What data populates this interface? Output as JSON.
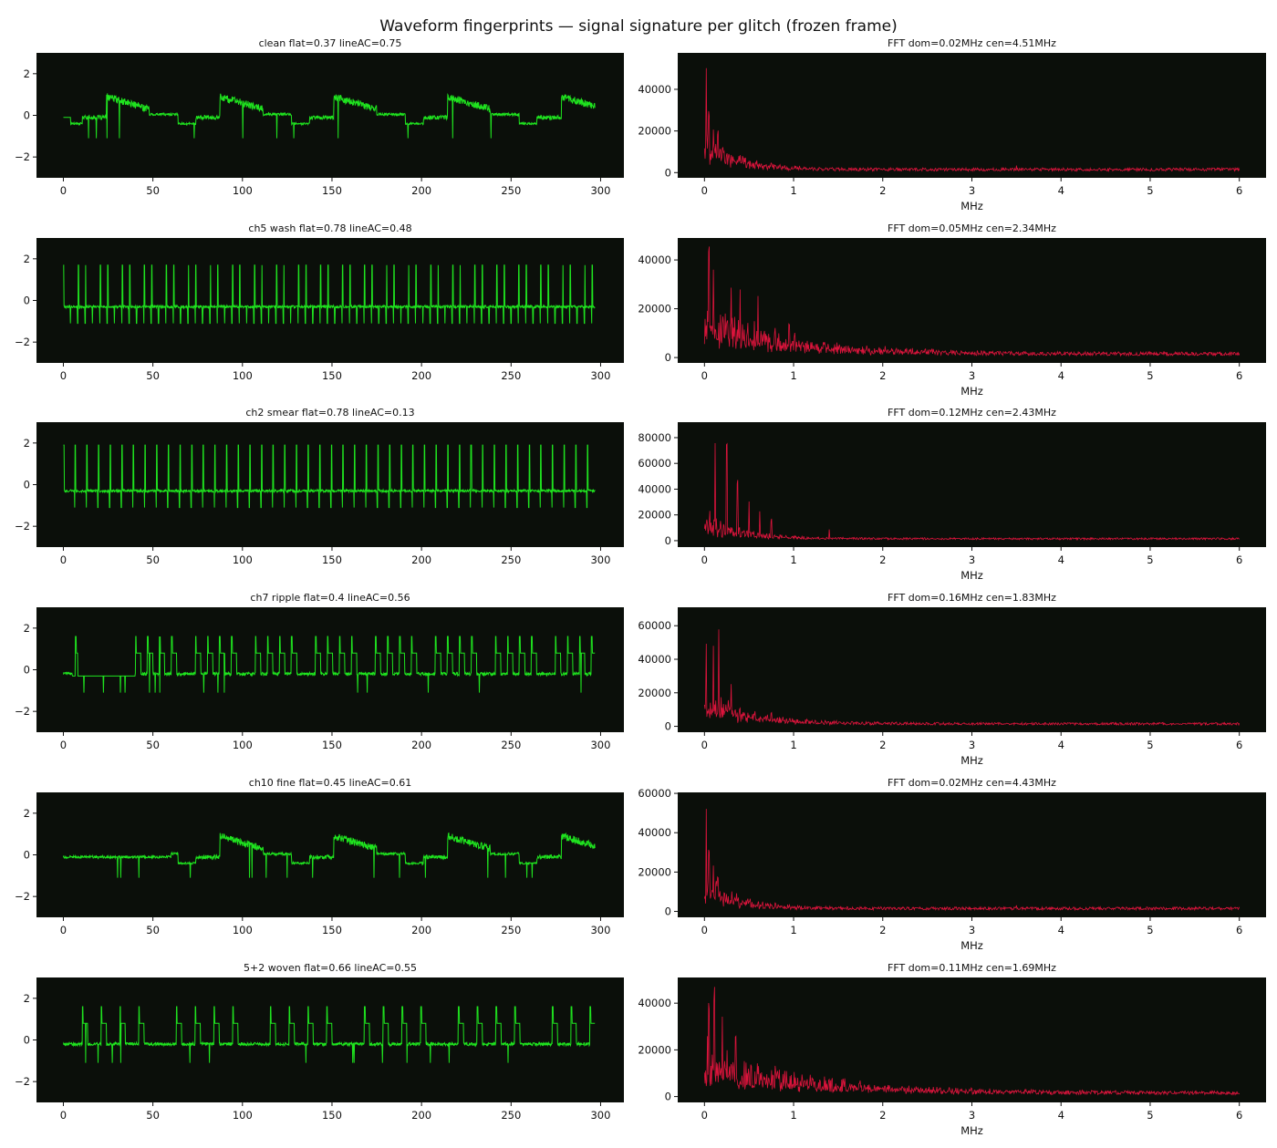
{
  "suptitle": "Waveform fingerprints — signal signature per glitch (frozen frame)",
  "colors": {
    "background": "#0b0f0a",
    "waveform": "#1fe31f",
    "spectrum": "#dc143c"
  },
  "chart_data": [
    {
      "type": "line",
      "panel": "waveform",
      "title": "clean  flat=0.37 lineAC=0.75",
      "variant": "clean",
      "xlim": [
        -15,
        313
      ],
      "ylim": [
        -3,
        3
      ],
      "xticks": [
        0,
        50,
        100,
        150,
        200,
        250,
        300
      ],
      "yticks": [
        -2,
        0,
        2
      ],
      "xlabel": ""
    },
    {
      "type": "line",
      "panel": "spectrum",
      "title": "FFT  dom=0.02MHz cen=4.51MHz",
      "xlabel": "MHz",
      "xlim": [
        -0.3,
        6.3
      ],
      "ylim": [
        -2500,
        57500
      ],
      "xticks": [
        0,
        1,
        2,
        3,
        4,
        5,
        6
      ],
      "yticks": [
        0,
        20000,
        40000
      ],
      "peaks": [
        [
          0.02,
          55000
        ],
        [
          0.05,
          30000
        ],
        [
          0.1,
          22000
        ],
        [
          0.15,
          21000
        ],
        [
          0.25,
          9000
        ],
        [
          3.5,
          4000
        ]
      ],
      "decay": 0.35
    },
    {
      "type": "line",
      "panel": "waveform",
      "title": "ch5 wash  flat=0.78 lineAC=0.48",
      "variant": "wash",
      "xlim": [
        -15,
        313
      ],
      "ylim": [
        -3,
        3
      ],
      "xticks": [
        0,
        50,
        100,
        150,
        200,
        250,
        300
      ],
      "yticks": [
        -2,
        0,
        2
      ],
      "xlabel": ""
    },
    {
      "type": "line",
      "panel": "spectrum",
      "title": "FFT  dom=0.05MHz cen=2.34MHz",
      "xlabel": "MHz",
      "xlim": [
        -0.3,
        6.3
      ],
      "ylim": [
        -2200,
        49000
      ],
      "xticks": [
        0,
        1,
        2,
        3,
        4,
        5,
        6
      ],
      "yticks": [
        0,
        20000,
        40000
      ],
      "peaks": [
        [
          0.05,
          46000
        ],
        [
          0.1,
          38000
        ],
        [
          0.3,
          33000
        ],
        [
          0.4,
          28000
        ],
        [
          0.6,
          26000
        ],
        [
          0.95,
          14000
        ]
      ],
      "decay": 0.9
    },
    {
      "type": "line",
      "panel": "waveform",
      "title": "ch2 smear  flat=0.78 lineAC=0.13",
      "variant": "smear",
      "xlim": [
        -15,
        313
      ],
      "ylim": [
        -3,
        3
      ],
      "xticks": [
        0,
        50,
        100,
        150,
        200,
        250,
        300
      ],
      "yticks": [
        -2,
        0,
        2
      ],
      "xlabel": ""
    },
    {
      "type": "line",
      "panel": "spectrum",
      "title": "FFT  dom=0.12MHz cen=2.43MHz",
      "xlabel": "MHz",
      "xlim": [
        -0.3,
        6.3
      ],
      "ylim": [
        -5000,
        92000
      ],
      "xticks": [
        0,
        1,
        2,
        3,
        4,
        5,
        6
      ],
      "yticks": [
        0,
        20000,
        40000,
        60000,
        80000
      ],
      "peaks": [
        [
          0.12,
          87000
        ],
        [
          0.25,
          78000
        ],
        [
          0.37,
          50000
        ],
        [
          0.5,
          33000
        ],
        [
          0.62,
          25000
        ],
        [
          0.75,
          17000
        ],
        [
          1.4,
          10000
        ]
      ],
      "decay": 0.4
    },
    {
      "type": "line",
      "panel": "waveform",
      "title": "ch7 ripple  flat=0.4 lineAC=0.56",
      "variant": "ripple",
      "xlim": [
        -15,
        313
      ],
      "ylim": [
        -3,
        3
      ],
      "xticks": [
        0,
        50,
        100,
        150,
        200,
        250,
        300
      ],
      "yticks": [
        -2,
        0,
        2
      ],
      "xlabel": ""
    },
    {
      "type": "line",
      "panel": "spectrum",
      "title": "FFT  dom=0.16MHz cen=1.83MHz",
      "xlabel": "MHz",
      "xlim": [
        -0.3,
        6.3
      ],
      "ylim": [
        -3500,
        71000
      ],
      "xticks": [
        0,
        1,
        2,
        3,
        4,
        5,
        6
      ],
      "yticks": [
        0,
        20000,
        40000,
        60000
      ],
      "peaks": [
        [
          0.02,
          57000
        ],
        [
          0.16,
          67000
        ],
        [
          0.1,
          50000
        ],
        [
          0.3,
          28000
        ],
        [
          0.75,
          9000
        ]
      ],
      "decay": 0.5
    },
    {
      "type": "line",
      "panel": "waveform",
      "title": "ch10 fine  flat=0.45 lineAC=0.61",
      "variant": "fine",
      "xlim": [
        -15,
        313
      ],
      "ylim": [
        -3,
        3
      ],
      "xticks": [
        0,
        50,
        100,
        150,
        200,
        250,
        300
      ],
      "yticks": [
        -2,
        0,
        2
      ],
      "xlabel": ""
    },
    {
      "type": "line",
      "panel": "spectrum",
      "title": "FFT  dom=0.02MHz cen=4.43MHz",
      "xlabel": "MHz",
      "xlim": [
        -0.3,
        6.3
      ],
      "ylim": [
        -3000,
        60500
      ],
      "xticks": [
        0,
        1,
        2,
        3,
        4,
        5,
        6
      ],
      "yticks": [
        0,
        20000,
        40000,
        60000
      ],
      "peaks": [
        [
          0.02,
          58000
        ],
        [
          0.05,
          34000
        ],
        [
          0.1,
          25000
        ],
        [
          0.15,
          20000
        ],
        [
          3.5,
          3500
        ]
      ],
      "decay": 0.35
    },
    {
      "type": "line",
      "panel": "waveform",
      "title": "5+2 woven  flat=0.66 lineAC=0.55",
      "variant": "woven",
      "xlim": [
        -15,
        313
      ],
      "ylim": [
        -3,
        3
      ],
      "xticks": [
        0,
        50,
        100,
        150,
        200,
        250,
        300
      ],
      "yticks": [
        -2,
        0,
        2
      ],
      "xlabel": ""
    },
    {
      "type": "line",
      "panel": "spectrum",
      "title": "FFT  dom=0.11MHz cen=1.69MHz",
      "xlabel": "MHz",
      "xlim": [
        -0.3,
        6.3
      ],
      "ylim": [
        -2500,
        51000
      ],
      "xticks": [
        0,
        1,
        2,
        3,
        4,
        5,
        6
      ],
      "yticks": [
        0,
        20000,
        40000
      ],
      "peaks": [
        [
          0.11,
          48000
        ],
        [
          0.05,
          43000
        ],
        [
          0.2,
          38000
        ],
        [
          0.35,
          30000
        ],
        [
          0.8,
          11000
        ],
        [
          1.3,
          6000
        ],
        [
          2.0,
          4000
        ]
      ],
      "decay": 1.1
    }
  ]
}
